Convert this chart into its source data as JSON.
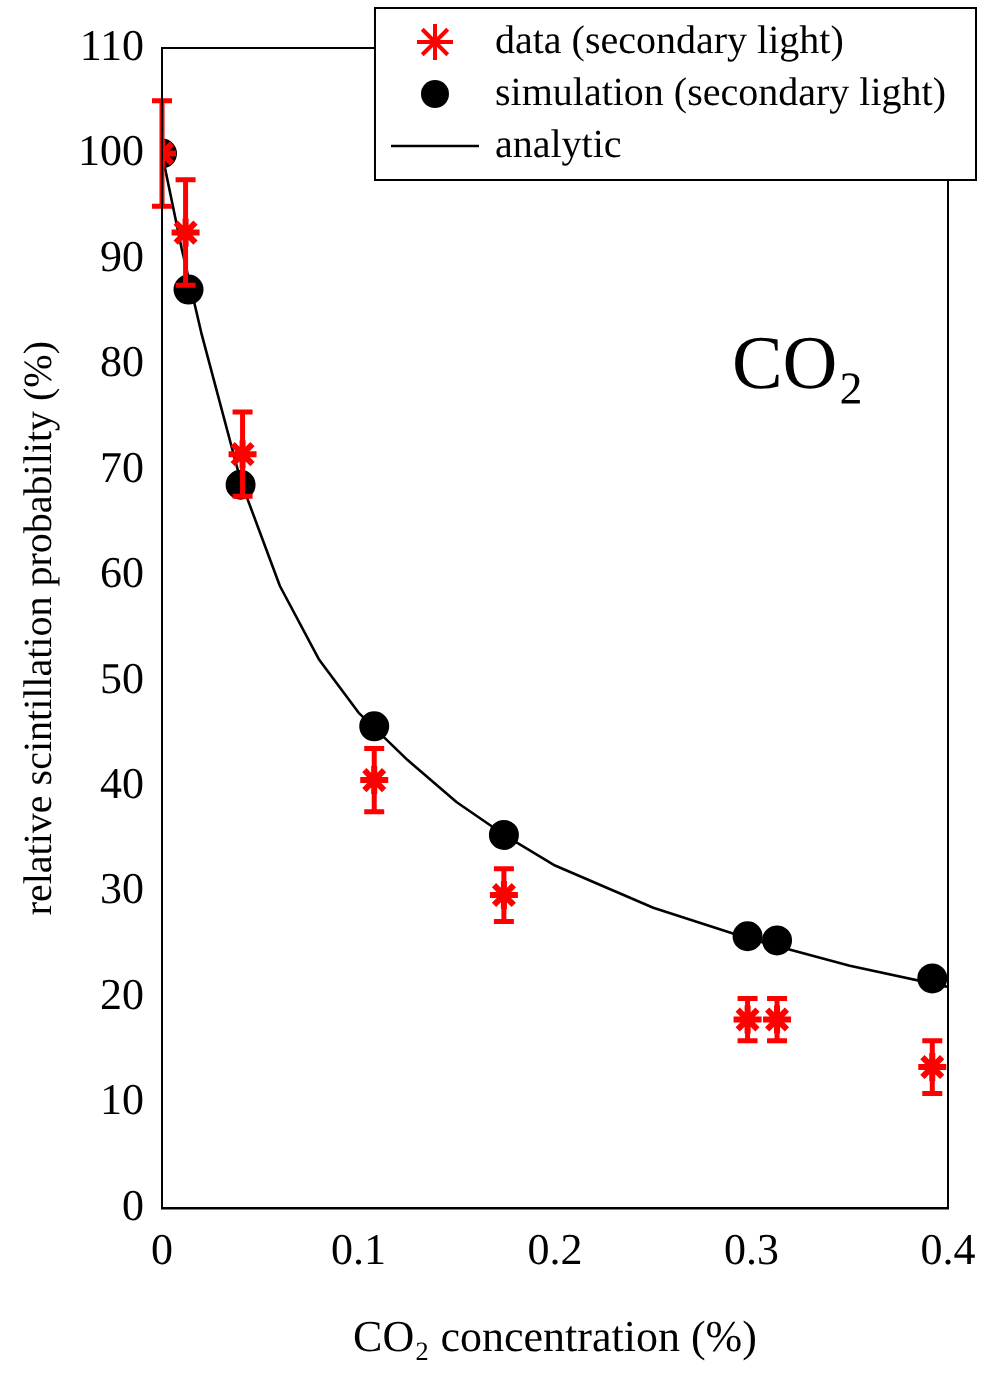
{
  "chart_data": {
    "type": "scatter",
    "xlabel": "CO₂ concentration (%)",
    "ylabel": "relative scintillation probability (%)",
    "xlim": [
      0,
      0.4
    ],
    "xticks": [
      0,
      0.1,
      0.2,
      0.3,
      0.4
    ],
    "ylim": [
      0,
      110
    ],
    "yticks": [
      0,
      10,
      20,
      30,
      40,
      50,
      60,
      70,
      80,
      90,
      100,
      110
    ],
    "grid": false,
    "legend": "top right",
    "annotations": [
      "CO₂"
    ],
    "series": [
      {
        "name": "data (secondary light)",
        "type": "scatter",
        "marker": "cross",
        "color": "#ff0000",
        "x": [
          0,
          0.012,
          0.041,
          0.108,
          0.174,
          0.298,
          0.313,
          0.392
        ],
        "values": [
          100,
          92.5,
          71.5,
          40.6,
          29.7,
          17.9,
          17.9,
          13.4
        ],
        "errors": [
          5,
          5,
          4,
          3,
          2.5,
          2,
          2,
          2.5
        ]
      },
      {
        "name": "simulation (secondary light)",
        "type": "scatter",
        "marker": "circle",
        "color": "#000000",
        "x": [
          0,
          0.0135,
          0.04,
          0.108,
          0.174,
          0.298,
          0.313,
          0.392
        ],
        "values": [
          100,
          87.1,
          68.6,
          45.7,
          35.4,
          25.8,
          25.4,
          21.8
        ]
      },
      {
        "name": "analytic",
        "type": "line",
        "marker": "none",
        "line_style": "solid",
        "color": "#000000",
        "x": [
          0,
          0.01,
          0.02,
          0.04,
          0.06,
          0.08,
          0.1,
          0.125,
          0.15,
          0.175,
          0.2,
          0.25,
          0.3,
          0.35,
          0.4
        ],
        "values": [
          100,
          91,
          83,
          69,
          59,
          52,
          47,
          42.5,
          38.5,
          35.3,
          32.5,
          28.5,
          25.5,
          23,
          21
        ]
      }
    ]
  }
}
